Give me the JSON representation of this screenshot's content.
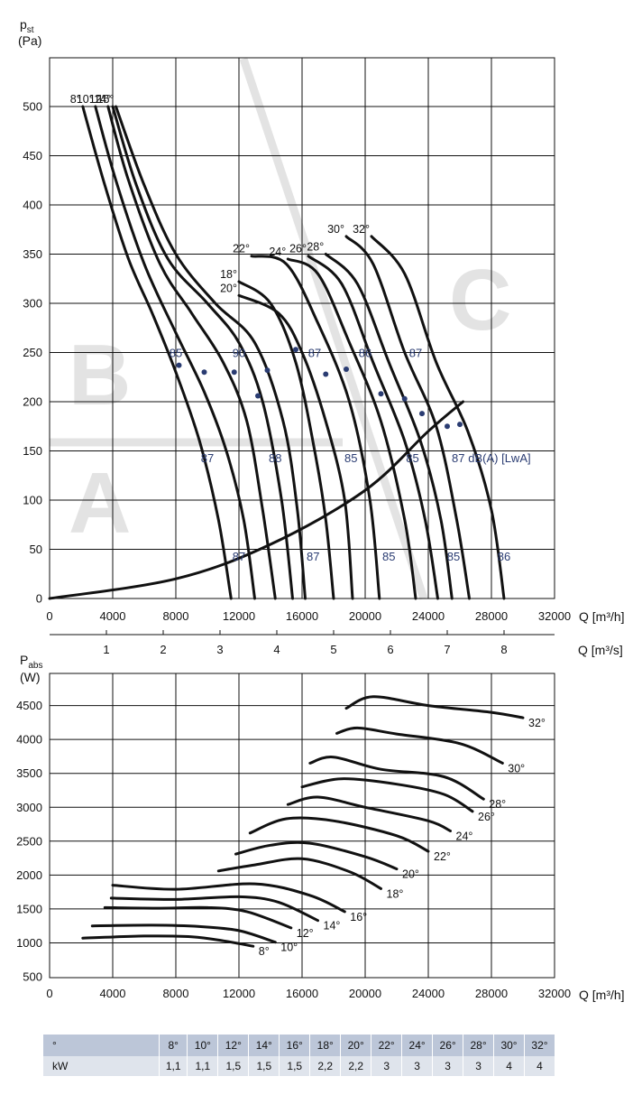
{
  "top_chart": {
    "ylabel_main": "p",
    "ylabel_sub": "st",
    "yunit": "(Pa)",
    "xlabel": "Q [m³/h]",
    "x2label": "Q [m³/s]",
    "xticks": [
      "0",
      "4000",
      "8000",
      "12000",
      "16000",
      "20000",
      "24000",
      "28000",
      "32000"
    ],
    "x2ticks": [
      "1",
      "2",
      "3",
      "4",
      "5",
      "6",
      "7",
      "8"
    ],
    "yticks": [
      "0",
      "50",
      "100",
      "150",
      "200",
      "250",
      "300",
      "350",
      "400",
      "450",
      "500"
    ],
    "zones": [
      "A",
      "B",
      "C"
    ],
    "db_unit": "dB(A) [LwA]"
  },
  "bottom_chart": {
    "ylabel_main": "P",
    "ylabel_sub": "abs",
    "yunit": "(W)",
    "xlabel": "Q [m³/h]",
    "xticks": [
      "0",
      "4000",
      "8000",
      "12000",
      "16000",
      "20000",
      "24000",
      "28000",
      "32000"
    ],
    "yticks": [
      "500",
      "1000",
      "1500",
      "2000",
      "2500",
      "3000",
      "3500",
      "4000",
      "4500"
    ]
  },
  "kw_table": {
    "header_label": "°",
    "row_label": "kW",
    "angles": [
      "8°",
      "10°",
      "12°",
      "14°",
      "16°",
      "18°",
      "20°",
      "22°",
      "24°",
      "26°",
      "28°",
      "30°",
      "32°"
    ],
    "kw": [
      "1,1",
      "1,1",
      "1,5",
      "1,5",
      "1,5",
      "2,2",
      "2,2",
      "3",
      "3",
      "3",
      "3",
      "4",
      "4"
    ]
  },
  "chart_data": [
    {
      "type": "line",
      "title": "",
      "xlabel": "Q [m³/h]",
      "ylabel": "pst (Pa)",
      "xlim": [
        0,
        32000
      ],
      "ylim": [
        0,
        550
      ],
      "secondary_x": {
        "label": "Q [m³/s]",
        "ticks": [
          1,
          2,
          3,
          4,
          5,
          6,
          7,
          8
        ]
      },
      "grid": true,
      "series": [
        {
          "name": "8°",
          "points": [
            [
              2100,
              500
            ],
            [
              3500,
              420
            ],
            [
              5000,
              345
            ],
            [
              6500,
              290
            ],
            [
              8000,
              230
            ],
            [
              9500,
              160
            ],
            [
              10700,
              80
            ],
            [
              11500,
              0
            ]
          ]
        },
        {
          "name": "10°",
          "points": [
            [
              2900,
              500
            ],
            [
              4200,
              425
            ],
            [
              6000,
              340
            ],
            [
              8000,
              270
            ],
            [
              9800,
              210
            ],
            [
              11200,
              150
            ],
            [
              12300,
              80
            ],
            [
              13000,
              0
            ]
          ]
        },
        {
          "name": "12°",
          "points": [
            [
              3700,
              500
            ],
            [
              5000,
              425
            ],
            [
              7000,
              340
            ],
            [
              9000,
              290
            ],
            [
              11000,
              240
            ],
            [
              12500,
              180
            ],
            [
              13500,
              90
            ],
            [
              14300,
              0
            ]
          ]
        },
        {
          "name": "14°",
          "points": [
            [
              4000,
              500
            ],
            [
              5500,
              420
            ],
            [
              7500,
              345
            ],
            [
              10000,
              300
            ],
            [
              12000,
              260
            ],
            [
              13500,
              200
            ],
            [
              14700,
              100
            ],
            [
              15400,
              0
            ]
          ]
        },
        {
          "name": "16°",
          "points": [
            [
              4200,
              500
            ],
            [
              6000,
              420
            ],
            [
              8000,
              350
            ],
            [
              10500,
              300
            ],
            [
              13000,
              260
            ],
            [
              14800,
              180
            ],
            [
              15700,
              90
            ],
            [
              16200,
              0
            ]
          ]
        },
        {
          "name": "18°",
          "points": [
            [
              12000,
              322
            ],
            [
              14000,
              300
            ],
            [
              15600,
              240
            ],
            [
              16800,
              150
            ],
            [
              17500,
              80
            ],
            [
              18000,
              0
            ]
          ]
        },
        {
          "name": "20°",
          "points": [
            [
              12000,
              308
            ],
            [
              14500,
              290
            ],
            [
              16000,
              250
            ],
            [
              17500,
              180
            ],
            [
              18700,
              100
            ],
            [
              19200,
              0
            ]
          ]
        },
        {
          "name": "22°",
          "points": [
            [
              12800,
              348
            ],
            [
              15000,
              340
            ],
            [
              17000,
              280
            ],
            [
              19000,
              200
            ],
            [
              20300,
              100
            ],
            [
              20900,
              0
            ]
          ]
        },
        {
          "name": "24°",
          "points": [
            [
              15100,
              345
            ],
            [
              17000,
              330
            ],
            [
              19000,
              260
            ],
            [
              21000,
              180
            ],
            [
              22500,
              80
            ],
            [
              23200,
              0
            ]
          ]
        },
        {
          "name": "26°",
          "points": [
            [
              16400,
              348
            ],
            [
              18500,
              320
            ],
            [
              20500,
              240
            ],
            [
              22500,
              160
            ],
            [
              23800,
              80
            ],
            [
              24600,
              0
            ]
          ]
        },
        {
          "name": "28°",
          "points": [
            [
              17500,
              350
            ],
            [
              19500,
              320
            ],
            [
              21500,
              240
            ],
            [
              23500,
              160
            ],
            [
              24800,
              80
            ],
            [
              25500,
              0
            ]
          ]
        },
        {
          "name": "30°",
          "points": [
            [
              18800,
              368
            ],
            [
              20500,
              340
            ],
            [
              22500,
              250
            ],
            [
              24500,
              175
            ],
            [
              25800,
              80
            ],
            [
              26600,
              0
            ]
          ]
        },
        {
          "name": "32°",
          "points": [
            [
              20400,
              368
            ],
            [
              22500,
              330
            ],
            [
              24500,
              240
            ],
            [
              26500,
              170
            ],
            [
              28000,
              90
            ],
            [
              28800,
              0
            ]
          ]
        },
        {
          "name": "system",
          "points": [
            [
              0,
              0
            ],
            [
              8000,
              20
            ],
            [
              14000,
              55
            ],
            [
              20000,
              110
            ],
            [
              24000,
              170
            ],
            [
              26200,
              200
            ]
          ]
        }
      ],
      "db_labels": [
        {
          "text": "85",
          "x": 8000,
          "y": 250
        },
        {
          "text": "90",
          "x": 12000,
          "y": 250
        },
        {
          "text": "87",
          "x": 16800,
          "y": 250
        },
        {
          "text": "86",
          "x": 20000,
          "y": 250
        },
        {
          "text": "87",
          "x": 23200,
          "y": 250
        },
        {
          "text": "87",
          "x": 10000,
          "y": 143
        },
        {
          "text": "88",
          "x": 14300,
          "y": 143
        },
        {
          "text": "85",
          "x": 19100,
          "y": 143
        },
        {
          "text": "85",
          "x": 23000,
          "y": 143
        },
        {
          "text": "87",
          "x": 25900,
          "y": 143
        },
        {
          "text": "87",
          "x": 12000,
          "y": 43
        },
        {
          "text": "87",
          "x": 16700,
          "y": 43
        },
        {
          "text": "85",
          "x": 21500,
          "y": 43
        },
        {
          "text": "85",
          "x": 25600,
          "y": 43
        },
        {
          "text": "86",
          "x": 28800,
          "y": 43
        }
      ],
      "operating_points": [
        [
          8200,
          237
        ],
        [
          9800,
          230
        ],
        [
          11700,
          230
        ],
        [
          13200,
          206
        ],
        [
          13800,
          232
        ],
        [
          15600,
          253
        ],
        [
          17500,
          228
        ],
        [
          18800,
          233
        ],
        [
          21000,
          208
        ],
        [
          22500,
          203
        ],
        [
          23600,
          188
        ],
        [
          25200,
          175
        ],
        [
          26000,
          177
        ]
      ]
    },
    {
      "type": "line",
      "title": "",
      "xlabel": "Q [m³/h]",
      "ylabel": "Pabs (W)",
      "xlim": [
        0,
        32000
      ],
      "ylim": [
        500,
        4800
      ],
      "grid": true,
      "series": [
        {
          "name": "8°",
          "points": [
            [
              2100,
              1070
            ],
            [
              6000,
              1100
            ],
            [
              9000,
              1090
            ],
            [
              11000,
              1030
            ],
            [
              12900,
              950
            ]
          ]
        },
        {
          "name": "10°",
          "points": [
            [
              2700,
              1250
            ],
            [
              6500,
              1260
            ],
            [
              9500,
              1240
            ],
            [
              12000,
              1180
            ],
            [
              14300,
              1010
            ]
          ]
        },
        {
          "name": "12°",
          "points": [
            [
              3500,
              1520
            ],
            [
              7000,
              1510
            ],
            [
              10000,
              1520
            ],
            [
              12500,
              1460
            ],
            [
              15300,
              1220
            ]
          ]
        },
        {
          "name": "14°",
          "points": [
            [
              3900,
              1660
            ],
            [
              8000,
              1640
            ],
            [
              12000,
              1680
            ],
            [
              14500,
              1600
            ],
            [
              17000,
              1330
            ]
          ]
        },
        {
          "name": "16°",
          "points": [
            [
              4000,
              1850
            ],
            [
              8000,
              1790
            ],
            [
              13000,
              1870
            ],
            [
              16500,
              1700
            ],
            [
              18700,
              1460
            ]
          ]
        },
        {
          "name": "18°",
          "points": [
            [
              10700,
              2060
            ],
            [
              13000,
              2150
            ],
            [
              16000,
              2240
            ],
            [
              19000,
              2050
            ],
            [
              21000,
              1800
            ]
          ]
        },
        {
          "name": "20°",
          "points": [
            [
              11800,
              2310
            ],
            [
              14000,
              2440
            ],
            [
              16500,
              2470
            ],
            [
              20000,
              2270
            ],
            [
              22000,
              2090
            ]
          ]
        },
        {
          "name": "22°",
          "points": [
            [
              12700,
              2620
            ],
            [
              15000,
              2830
            ],
            [
              18000,
              2800
            ],
            [
              22000,
              2580
            ],
            [
              24000,
              2350
            ]
          ]
        },
        {
          "name": "24°",
          "points": [
            [
              15100,
              3040
            ],
            [
              17000,
              3150
            ],
            [
              20000,
              3000
            ],
            [
              24000,
              2800
            ],
            [
              25400,
              2650
            ]
          ]
        },
        {
          "name": "26°",
          "points": [
            [
              16000,
              3300
            ],
            [
              18500,
              3420
            ],
            [
              22000,
              3340
            ],
            [
              25000,
              3190
            ],
            [
              26800,
              2940
            ]
          ]
        },
        {
          "name": "28°",
          "points": [
            [
              16500,
              3650
            ],
            [
              18000,
              3740
            ],
            [
              21000,
              3560
            ],
            [
              25000,
              3450
            ],
            [
              27500,
              3120
            ]
          ]
        },
        {
          "name": "30°",
          "points": [
            [
              18200,
              4090
            ],
            [
              19500,
              4170
            ],
            [
              22000,
              4080
            ],
            [
              26000,
              3940
            ],
            [
              28700,
              3650
            ]
          ]
        },
        {
          "name": "32°",
          "points": [
            [
              18800,
              4460
            ],
            [
              20500,
              4630
            ],
            [
              24000,
              4500
            ],
            [
              28000,
              4400
            ],
            [
              30000,
              4320
            ]
          ]
        }
      ]
    },
    {
      "type": "table",
      "columns": [
        "°",
        "8°",
        "10°",
        "12°",
        "14°",
        "16°",
        "18°",
        "20°",
        "22°",
        "24°",
        "26°",
        "28°",
        "30°",
        "32°"
      ],
      "rows": [
        [
          "kW",
          "1,1",
          "1,1",
          "1,5",
          "1,5",
          "1,5",
          "2,2",
          "2,2",
          "3",
          "3",
          "3",
          "3",
          "4",
          "4"
        ]
      ]
    }
  ]
}
